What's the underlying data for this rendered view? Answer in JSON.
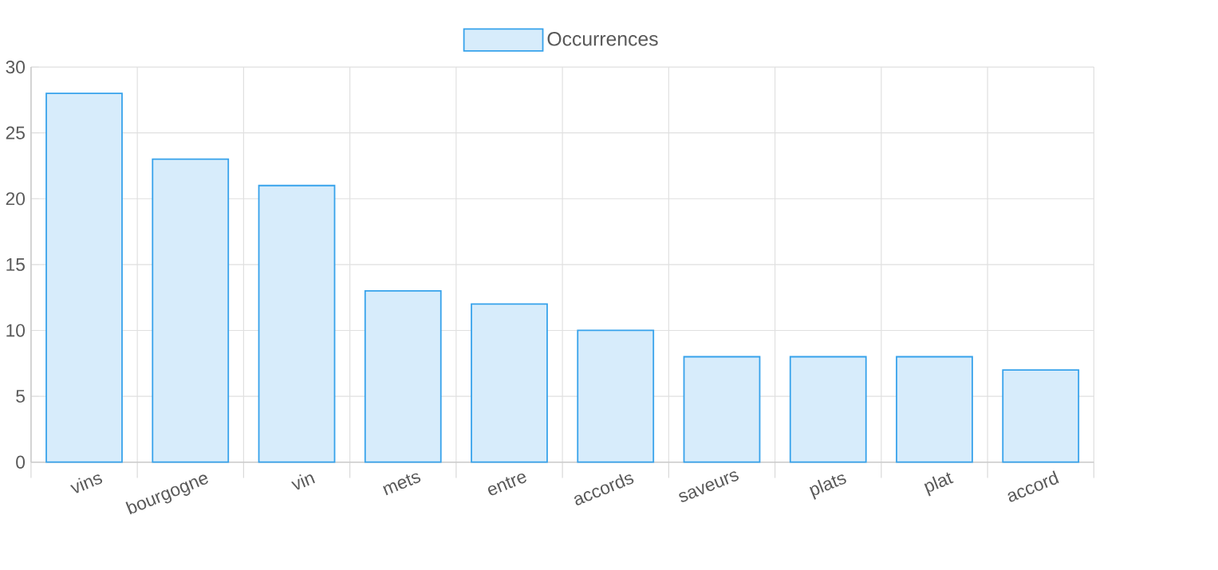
{
  "chart_data": {
    "type": "bar",
    "categories": [
      "vins",
      "bourgogne",
      "vin",
      "mets",
      "entre",
      "accords",
      "saveurs",
      "plats",
      "plat",
      "accord"
    ],
    "series": [
      {
        "name": "Occurrences",
        "color": "#36a2eb",
        "values": [
          28,
          23,
          21,
          13,
          12,
          10,
          8,
          8,
          8,
          7
        ]
      }
    ],
    "ylim": [
      0,
      30
    ],
    "yticks": [
      0,
      5,
      10,
      15,
      20,
      25,
      30
    ],
    "grid": true,
    "legend": "top"
  }
}
